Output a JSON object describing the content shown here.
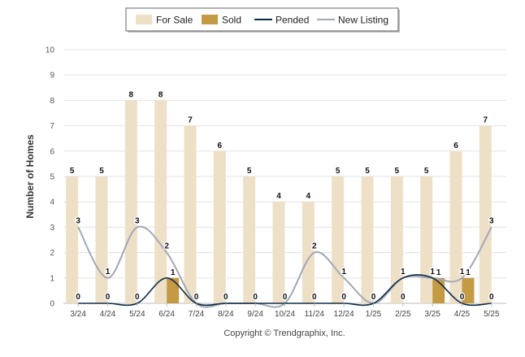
{
  "chart_data": {
    "type": "bar",
    "categories": [
      "3/24",
      "4/24",
      "5/24",
      "6/24",
      "7/24",
      "8/24",
      "9/24",
      "10/24",
      "11/24",
      "12/24",
      "1/25",
      "2/25",
      "3/25",
      "4/25",
      "5/25"
    ],
    "series": [
      {
        "name": "For Sale",
        "kind": "bar",
        "color": "#ede0c6",
        "values": [
          5,
          5,
          8,
          8,
          7,
          6,
          5,
          4,
          4,
          5,
          5,
          5,
          5,
          6,
          7
        ]
      },
      {
        "name": "Sold",
        "kind": "bar",
        "color": "#c49a45",
        "values": [
          0,
          0,
          0,
          1,
          0,
          0,
          0,
          0,
          0,
          0,
          0,
          0,
          1,
          1,
          0
        ]
      },
      {
        "name": "Pended",
        "kind": "line",
        "color": "#0e2a47",
        "values": [
          0,
          0,
          0,
          1,
          0,
          0,
          0,
          0,
          0,
          0,
          0,
          1,
          1,
          0,
          0
        ]
      },
      {
        "name": "New Listing",
        "kind": "line",
        "color": "#a3a8b5",
        "values": [
          3,
          1,
          3,
          2,
          0,
          0,
          0,
          0,
          2,
          1,
          0,
          1,
          1,
          1,
          3
        ]
      }
    ],
    "ylabel": "Number of Homes",
    "ylim": [
      0,
      10
    ],
    "yticks": [
      "0",
      "1",
      "2",
      "3",
      "4",
      "5",
      "6",
      "7",
      "8",
      "9",
      "10"
    ],
    "grid": true,
    "legend_position": "top-center",
    "footer": "Copyright © Trendgraphix, Inc."
  }
}
